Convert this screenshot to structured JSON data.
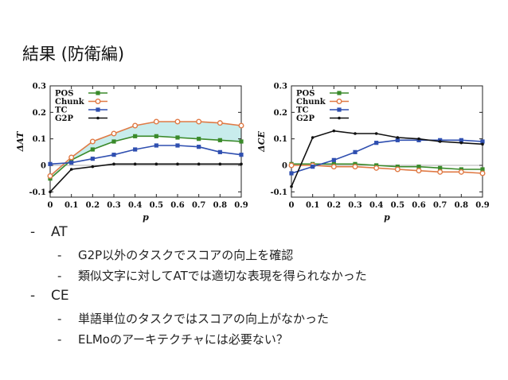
{
  "slide": {
    "title": "結果 (防衛編)"
  },
  "bullets": {
    "at": {
      "label": "AT",
      "items": [
        "G2P以外のタスクでスコアの向上を確認",
        "類似文字に対してATでは適切な表現を得られなかった"
      ]
    },
    "ce": {
      "label": "CE",
      "items": [
        "単語単位のタスクではスコアの向上がなかった",
        "ELMoのアーキテクチャには必要ない？"
      ]
    },
    "dash": "-"
  },
  "chart_data": [
    {
      "type": "line",
      "ylabel": "ΔAT",
      "xlabel": "p",
      "x": [
        0,
        0.1,
        0.2,
        0.3,
        0.4,
        0.5,
        0.6,
        0.7,
        0.8,
        0.9
      ],
      "xticks": [
        "0",
        "0.1",
        "0.2",
        "0.3",
        "0.4",
        "0.5",
        "0.6",
        "0.7",
        "0.8",
        "0.9"
      ],
      "ylim": [
        -0.12,
        0.3
      ],
      "yticks": [
        -0.1,
        0,
        0.1,
        0.2,
        0.3
      ],
      "ytick_labels": [
        "-0.1",
        "0",
        "0.1",
        "0.2",
        "0.3"
      ],
      "legend_position": "top-left",
      "series": [
        {
          "name": "POS",
          "color": "#3a8a2a",
          "marker": "square",
          "values": [
            -0.05,
            0.02,
            0.06,
            0.09,
            0.11,
            0.11,
            0.105,
            0.1,
            0.095,
            0.09
          ]
        },
        {
          "name": "Chunk",
          "color": "#e07a45",
          "marker": "circle",
          "values": [
            -0.04,
            0.03,
            0.09,
            0.12,
            0.15,
            0.165,
            0.165,
            0.165,
            0.16,
            0.15
          ]
        },
        {
          "name": "TC",
          "color": "#2f4fb0",
          "marker": "square",
          "values": [
            0.005,
            0.01,
            0.025,
            0.04,
            0.06,
            0.075,
            0.075,
            0.07,
            0.05,
            0.04
          ]
        },
        {
          "name": "G2P",
          "color": "#111111",
          "marker": "dot",
          "values": [
            -0.1,
            -0.015,
            -0.005,
            0.005,
            0.005,
            0.005,
            0.005,
            0.005,
            0.005,
            0.005
          ]
        }
      ],
      "shaded_band": {
        "between": [
          "POS",
          "Chunk"
        ],
        "color": "#c8ecec"
      }
    },
    {
      "type": "line",
      "ylabel": "ΔCE",
      "xlabel": "p",
      "x": [
        0,
        0.1,
        0.2,
        0.3,
        0.4,
        0.5,
        0.6,
        0.7,
        0.8,
        0.9
      ],
      "xticks": [
        "0",
        "0.1",
        "0.2",
        "0.3",
        "0.4",
        "0.5",
        "0.6",
        "0.7",
        "0.8",
        "0.9"
      ],
      "ylim": [
        -0.12,
        0.3
      ],
      "yticks": [
        -0.1,
        0,
        0.1,
        0.2,
        0.3
      ],
      "ytick_labels": [
        "-0.1",
        "0",
        "0.1",
        "0.2",
        "0.3"
      ],
      "legend_position": "top-left",
      "series": [
        {
          "name": "POS",
          "color": "#3a8a2a",
          "marker": "square",
          "values": [
            0.005,
            0.005,
            0.005,
            0.005,
            0.0,
            -0.005,
            -0.005,
            -0.01,
            -0.015,
            -0.015
          ]
        },
        {
          "name": "Chunk",
          "color": "#e07a45",
          "marker": "circle",
          "values": [
            0.0,
            0.0,
            -0.005,
            -0.005,
            -0.01,
            -0.015,
            -0.02,
            -0.025,
            -0.025,
            -0.03
          ]
        },
        {
          "name": "TC",
          "color": "#2f4fb0",
          "marker": "square",
          "values": [
            -0.03,
            -0.005,
            0.02,
            0.05,
            0.085,
            0.095,
            0.095,
            0.095,
            0.095,
            0.09
          ]
        },
        {
          "name": "G2P",
          "color": "#111111",
          "marker": "dot",
          "values": [
            -0.08,
            0.105,
            0.13,
            0.12,
            0.12,
            0.105,
            0.1,
            0.09,
            0.085,
            0.08
          ]
        }
      ]
    }
  ]
}
